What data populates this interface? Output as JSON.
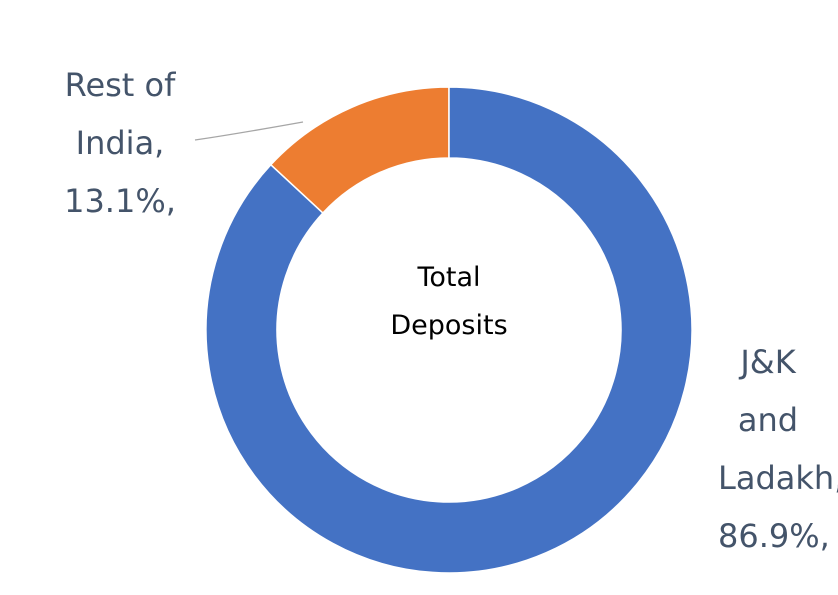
{
  "chart_data": {
    "type": "donut",
    "center_label": "Total Deposits",
    "categories": [
      "J&K and Ladakh",
      "Rest of India"
    ],
    "values": [
      86.9,
      13.1
    ],
    "value_labels": [
      "J&K and Ladakh, 86.9%,",
      "Rest of India, 13.1%,"
    ],
    "colors": [
      "#4472c4",
      "#ed7d31"
    ]
  }
}
